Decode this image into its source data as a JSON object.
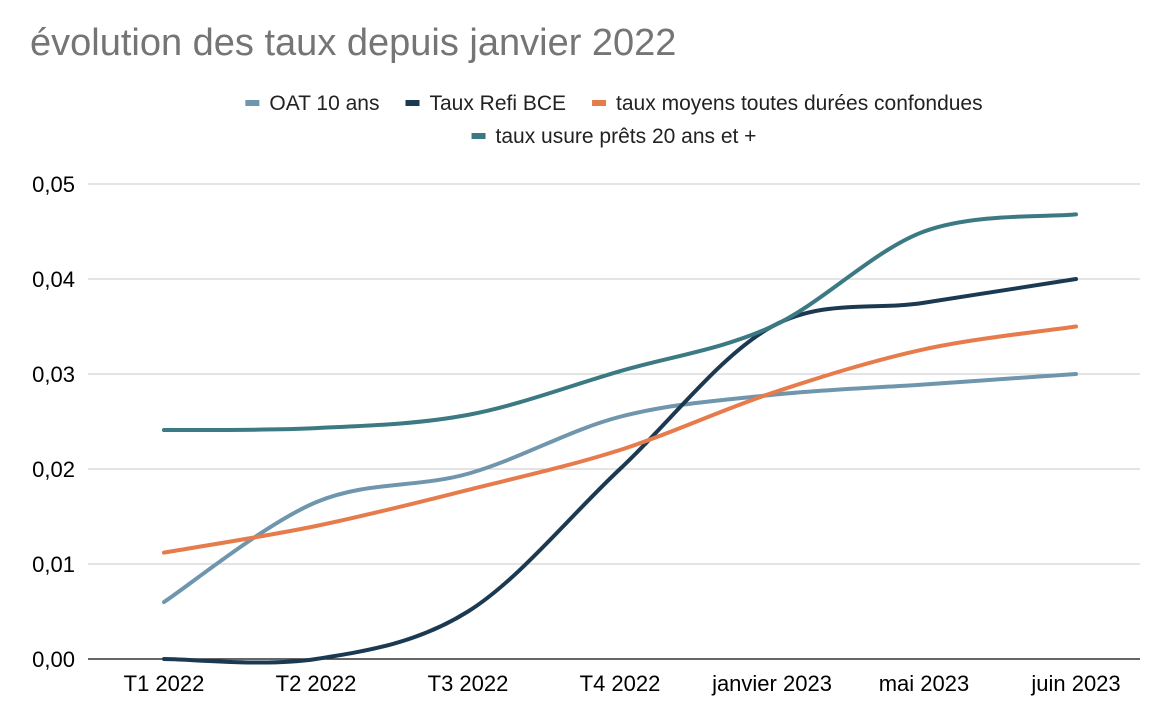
{
  "chart_data": {
    "type": "line",
    "title": "évolution des taux depuis janvier 2022",
    "xlabel": "",
    "ylabel": "",
    "categories": [
      "T1 2022",
      "T2 2022",
      "T3 2022",
      "T4 2022",
      "janvier 2023",
      "mai 2023",
      "juin 2023"
    ],
    "y_ticks": [
      "0,00",
      "0,01",
      "0,02",
      "0,03",
      "0,04",
      "0,05"
    ],
    "ylim": [
      0,
      0.05
    ],
    "grid": true,
    "legend_position": "top",
    "smooth": true,
    "series": [
      {
        "name": "OAT 10 ans",
        "color": "#7096ad",
        "values": [
          0.006,
          0.0165,
          0.0195,
          0.0255,
          0.0278,
          0.0289,
          0.03
        ]
      },
      {
        "name": "Taux Refi BCE",
        "color": "#1b3a52",
        "values": [
          0.0,
          0.0,
          0.005,
          0.02,
          0.035,
          0.0375,
          0.04
        ]
      },
      {
        "name": "taux moyens toutes durées confondues",
        "color": "#e67c4c",
        "values": [
          0.0112,
          0.014,
          0.0178,
          0.022,
          0.028,
          0.0326,
          0.035
        ]
      },
      {
        "name": "taux usure prêts 20 ans et +",
        "color": "#3b7a83",
        "values": [
          0.0241,
          0.0243,
          0.0257,
          0.0303,
          0.035,
          0.045,
          0.0468
        ]
      }
    ]
  }
}
